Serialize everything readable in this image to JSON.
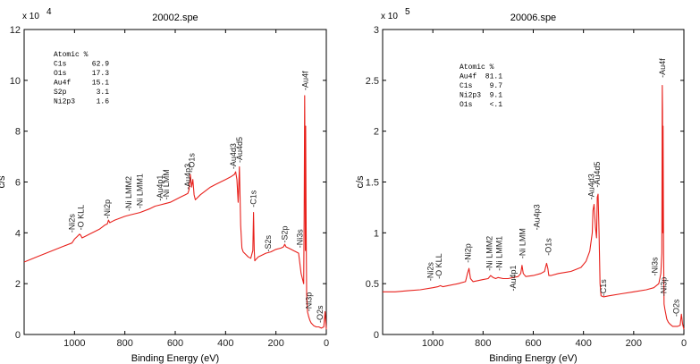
{
  "chart_data": [
    {
      "type": "line",
      "title": "20002.spe",
      "xlabel": "Binding Energy (eV)",
      "ylabel": "c/s",
      "xlim": [
        1200,
        0
      ],
      "ylim": [
        0,
        12
      ],
      "y_multiplier": "x 10",
      "y_exponent": "4",
      "x_ticks": [
        "1000",
        "800",
        "600",
        "400",
        "200",
        "0"
      ],
      "x_tick_values": [
        1000,
        800,
        600,
        400,
        200,
        0
      ],
      "y_ticks": [
        "0",
        "2",
        "4",
        "6",
        "8",
        "10",
        "12"
      ],
      "y_tick_values": [
        0,
        2,
        4,
        6,
        8,
        10,
        12
      ],
      "color": "#e8211c",
      "series": [
        {
          "name": "20002.spe",
          "x": [
            1200,
            1150,
            1100,
            1050,
            1010,
            1000,
            990,
            980,
            975,
            970,
            960,
            940,
            900,
            880,
            870,
            865,
            860,
            840,
            800,
            780,
            760,
            740,
            700,
            680,
            660,
            640,
            620,
            600,
            580,
            560,
            550,
            545,
            540,
            535,
            530,
            525,
            520,
            500,
            480,
            460,
            440,
            420,
            400,
            380,
            365,
            360,
            355,
            350,
            345,
            340,
            335,
            330,
            320,
            310,
            300,
            292,
            289,
            286,
            284,
            280,
            270,
            260,
            240,
            220,
            200,
            180,
            170,
            165,
            160,
            150,
            140,
            130,
            120,
            110,
            100,
            90,
            88,
            86,
            84,
            83,
            82,
            80,
            78,
            75,
            70,
            65,
            60,
            55,
            50,
            40,
            30,
            20,
            10,
            5,
            0
          ],
          "y": [
            2.85,
            3.05,
            3.25,
            3.45,
            3.6,
            3.75,
            3.85,
            3.95,
            3.9,
            3.8,
            3.85,
            3.95,
            4.15,
            4.3,
            4.35,
            4.5,
            4.4,
            4.5,
            4.65,
            4.7,
            4.75,
            4.8,
            4.95,
            5.05,
            5.1,
            5.15,
            5.2,
            5.3,
            5.4,
            5.5,
            5.55,
            5.7,
            6.3,
            5.8,
            6.1,
            5.5,
            5.3,
            5.5,
            5.65,
            5.8,
            5.9,
            6.0,
            6.1,
            6.2,
            6.3,
            6.4,
            6.1,
            5.2,
            6.6,
            4.3,
            3.4,
            3.25,
            3.15,
            3.05,
            3.0,
            3.3,
            4.8,
            3.3,
            2.9,
            2.95,
            3.05,
            3.1,
            3.2,
            3.25,
            3.35,
            3.4,
            3.45,
            3.55,
            3.45,
            3.4,
            3.35,
            3.3,
            3.25,
            3.2,
            2.4,
            2.0,
            4.5,
            9.4,
            6.0,
            3.3,
            8.2,
            4.0,
            1.6,
            0.9,
            0.7,
            0.55,
            0.45,
            0.4,
            0.35,
            0.3,
            0.3,
            0.25,
            0.3,
            0.9,
            0.2
          ]
        }
      ],
      "peak_labels": [
        "-Ni2s",
        "-O KLL",
        "-Ni2p",
        "-Ni LMM2",
        "-Ni LMM1",
        "-Au4p1",
        "-Ni LMM",
        "-Au4p3",
        "-O1s",
        "-Au4d3",
        "-Au4d5",
        "-C1s",
        "-S2s",
        "-S2p",
        "-Ni3s",
        "-Au4f",
        "-Ni3p",
        "-O2s"
      ],
      "peak_positions": [
        [
          1010,
          3.9
        ],
        [
          975,
          4.0
        ],
        [
          870,
          4.45
        ],
        [
          785,
          4.75
        ],
        [
          740,
          4.85
        ],
        [
          660,
          5.15
        ],
        [
          635,
          5.2
        ],
        [
          550,
          5.6
        ],
        [
          535,
          6.35
        ],
        [
          370,
          6.4
        ],
        [
          345,
          6.65
        ],
        [
          290,
          4.9
        ],
        [
          230,
          3.15
        ],
        [
          165,
          3.5
        ],
        [
          105,
          3.3
        ],
        [
          84,
          9.5
        ],
        [
          70,
          0.8
        ],
        [
          25,
          0.35
        ]
      ],
      "annotations": {
        "header": "Atomic  %",
        "rows": [
          {
            "label": "C1s",
            "value": "62.9"
          },
          {
            "label": "O1s",
            "value": "17.3"
          },
          {
            "label": "Au4f",
            "value": "15.1"
          },
          {
            "label": "S2p",
            "value": "3.1"
          },
          {
            "label": "Ni2p3",
            "value": "1.6"
          }
        ]
      },
      "grid": false,
      "legend": "none"
    },
    {
      "type": "line",
      "title": "20006.spe",
      "xlabel": "Binding Energy (eV)",
      "ylabel": "c/s",
      "xlim": [
        1200,
        0
      ],
      "ylim": [
        0,
        3
      ],
      "y_multiplier": "x 10",
      "y_exponent": "5",
      "x_ticks": [
        "1000",
        "800",
        "600",
        "400",
        "200",
        "0"
      ],
      "x_tick_values": [
        1000,
        800,
        600,
        400,
        200,
        0
      ],
      "y_ticks": [
        "0",
        "0.5",
        "1",
        "1.5",
        "2",
        "2.5",
        "3"
      ],
      "y_tick_values": [
        0,
        0.5,
        1,
        1.5,
        2,
        2.5,
        3
      ],
      "color": "#e8211c",
      "series": [
        {
          "name": "20006.spe",
          "x": [
            1200,
            1150,
            1100,
            1050,
            1000,
            980,
            970,
            960,
            900,
            870,
            862,
            856,
            850,
            840,
            800,
            780,
            770,
            760,
            750,
            740,
            720,
            700,
            680,
            660,
            650,
            645,
            640,
            630,
            600,
            570,
            555,
            547,
            542,
            538,
            530,
            500,
            450,
            410,
            390,
            375,
            365,
            362,
            358,
            352,
            348,
            345,
            342,
            338,
            334,
            330,
            320,
            300,
            250,
            200,
            150,
            120,
            110,
            100,
            92,
            88,
            86,
            85,
            84,
            83,
            81,
            79,
            76,
            72,
            68,
            62,
            55,
            45,
            35,
            25,
            15,
            10,
            5,
            0
          ],
          "y": [
            0.42,
            0.42,
            0.43,
            0.44,
            0.46,
            0.47,
            0.48,
            0.47,
            0.5,
            0.52,
            0.6,
            0.65,
            0.55,
            0.52,
            0.54,
            0.55,
            0.58,
            0.56,
            0.55,
            0.56,
            0.55,
            0.55,
            0.56,
            0.57,
            0.6,
            0.68,
            0.6,
            0.57,
            0.58,
            0.6,
            0.62,
            0.7,
            0.65,
            0.58,
            0.58,
            0.6,
            0.62,
            0.66,
            0.72,
            0.82,
            1.0,
            1.22,
            1.28,
            1.05,
            0.95,
            1.35,
            1.38,
            1.0,
            0.5,
            0.38,
            0.37,
            0.38,
            0.4,
            0.42,
            0.44,
            0.46,
            0.48,
            0.5,
            0.6,
            0.8,
            2.45,
            2.2,
            1.0,
            2.05,
            0.8,
            0.3,
            0.25,
            0.2,
            0.15,
            0.12,
            0.1,
            0.08,
            0.08,
            0.08,
            0.09,
            0.2,
            0.1,
            0.05
          ]
        }
      ],
      "peak_labels": [
        "-Ni2s",
        "-O KLL",
        "-Ni2p",
        "-Ni LMM2",
        "-Ni LMM1",
        "-Au4p1",
        "-Ni LMM",
        "-Au4p3",
        "-O1s",
        "-Au4d3",
        "-Au4d5",
        "-C1s",
        "-Ni3s",
        "-Au4f",
        "-Ni3p",
        "-O2s"
      ],
      "peak_positions": [
        [
          1010,
          0.5
        ],
        [
          975,
          0.52
        ],
        [
          860,
          0.68
        ],
        [
          775,
          0.6
        ],
        [
          735,
          0.6
        ],
        [
          680,
          0.4
        ],
        [
          642,
          0.72
        ],
        [
          585,
          1.0
        ],
        [
          540,
          0.75
        ],
        [
          368,
          1.3
        ],
        [
          346,
          1.42
        ],
        [
          320,
          0.35
        ],
        [
          115,
          0.55
        ],
        [
          85,
          2.5
        ],
        [
          80,
          0.35
        ],
        [
          30,
          0.15
        ]
      ],
      "annotations": {
        "header": "Atomic  %",
        "rows": [
          {
            "label": "Au4f",
            "value": "81.1"
          },
          {
            "label": "C1s",
            "value": "9.7"
          },
          {
            "label": "Ni2p3",
            "value": "9.1"
          },
          {
            "label": "O1s",
            "value": "<.1"
          }
        ]
      },
      "grid": false,
      "legend": "none"
    }
  ]
}
